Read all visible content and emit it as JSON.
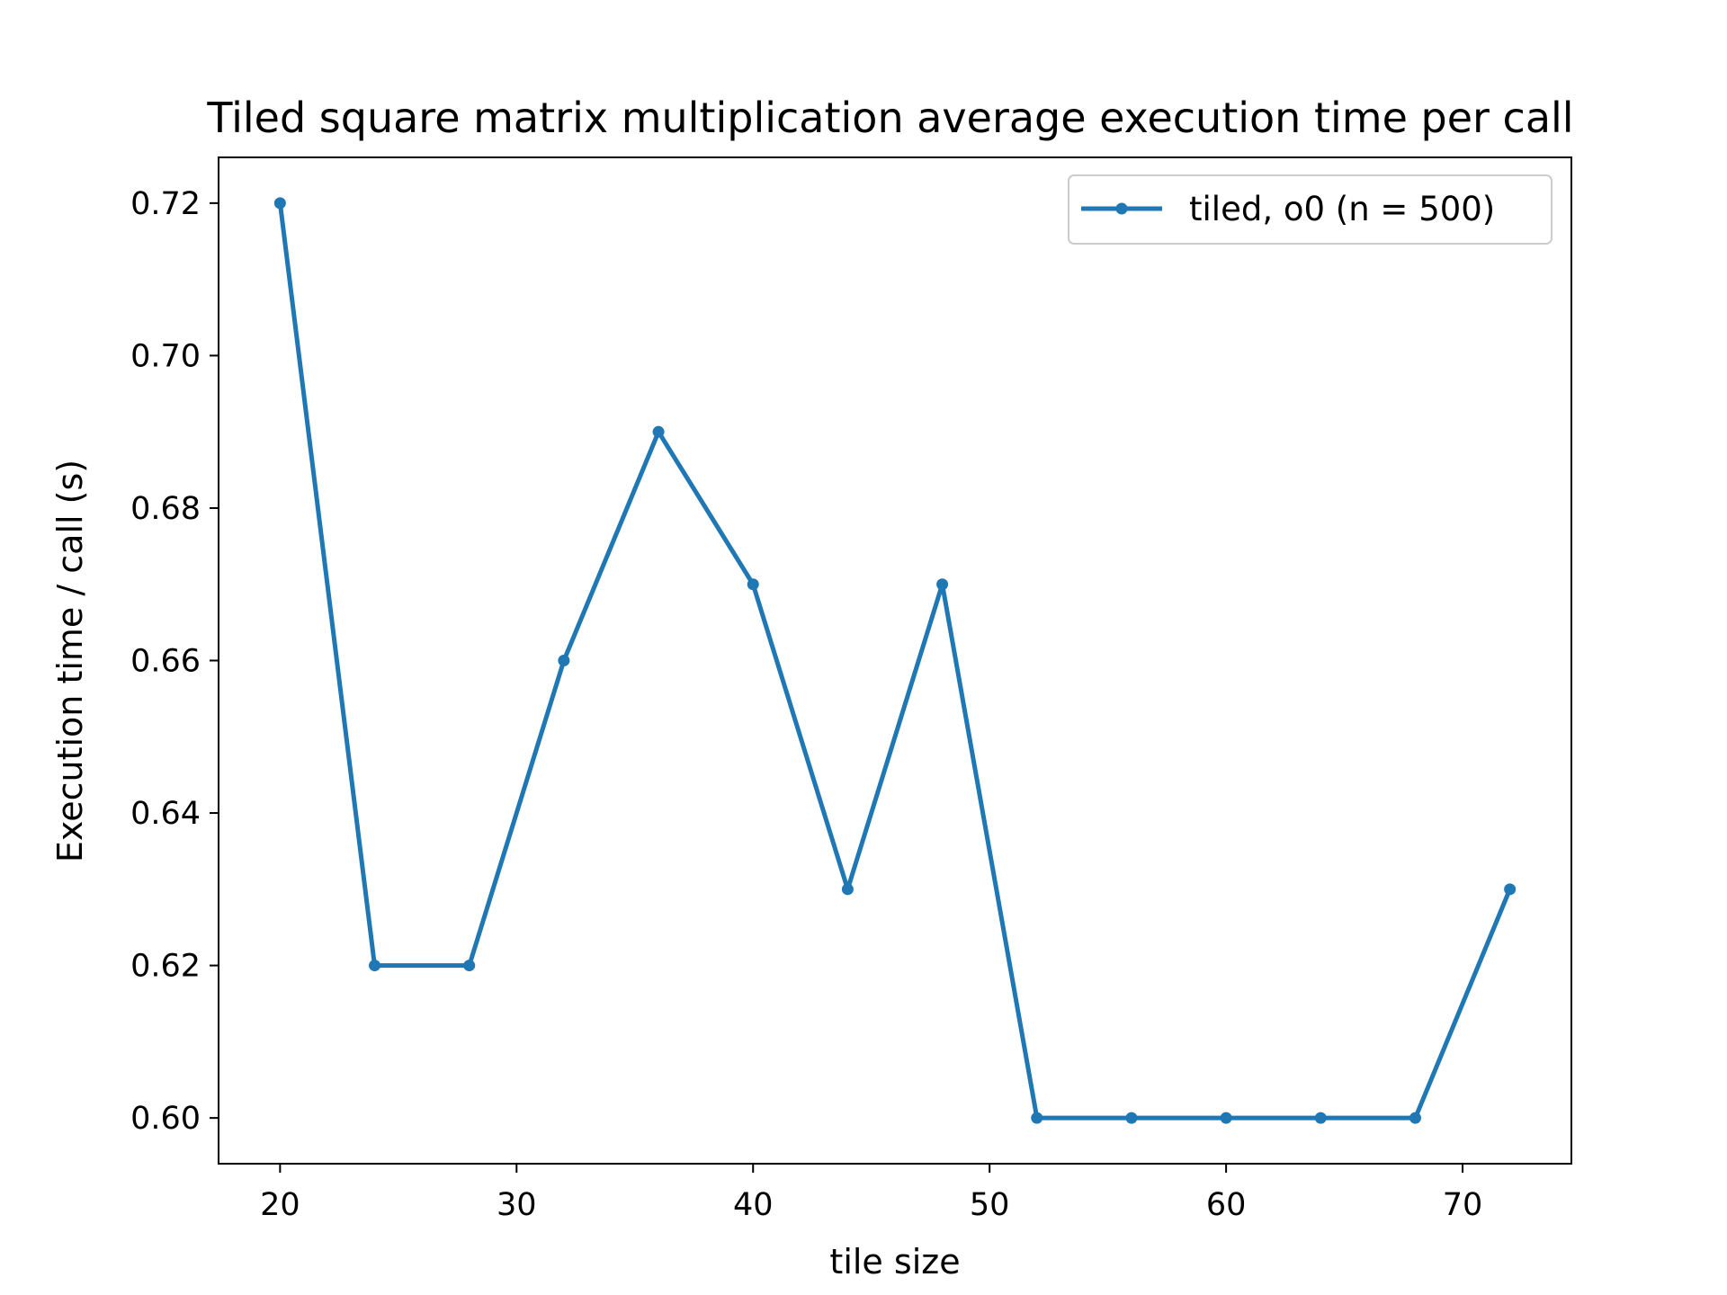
{
  "chart_data": {
    "type": "line",
    "title": "Tiled square matrix multiplication average execution time per call",
    "xlabel": "tile size",
    "ylabel": "Execution time / call (s)",
    "xlim": [
      17.4,
      74.6
    ],
    "ylim": [
      0.594,
      0.726
    ],
    "xticks": [
      20,
      30,
      40,
      50,
      60,
      70
    ],
    "yticks": [
      "0.60",
      "0.62",
      "0.64",
      "0.66",
      "0.68",
      "0.70",
      "0.72"
    ],
    "legend_position": "top-right",
    "series": [
      {
        "name": "tiled, o0 (n = 500)",
        "color": "#1f77b4",
        "marker": "point",
        "x": [
          20,
          24,
          28,
          32,
          36,
          40,
          44,
          48,
          52,
          56,
          60,
          64,
          68,
          72
        ],
        "y": [
          0.72,
          0.62,
          0.62,
          0.66,
          0.69,
          0.67,
          0.63,
          0.67,
          0.6,
          0.6,
          0.6,
          0.6,
          0.6,
          0.63
        ]
      }
    ]
  }
}
